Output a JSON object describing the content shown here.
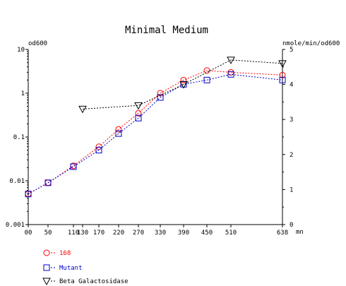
{
  "chart_data": {
    "type": "line",
    "title": "Minimal Medium",
    "ylabel_left": "od600",
    "ylabel_right": "nmole/min/od600",
    "xlabel": "mn",
    "x_ticks": [
      "00",
      "50",
      "110",
      "130",
      "170",
      "220",
      "270",
      "330",
      "390",
      "450",
      "510",
      "638"
    ],
    "y_left": {
      "scale": "log",
      "ylim": [
        0.001,
        10
      ],
      "ticks": [
        "10",
        "1",
        "0.1",
        "0.01",
        "0.001"
      ]
    },
    "y_right": {
      "scale": "linear",
      "ylim": [
        0,
        5
      ],
      "ticks": [
        "5",
        "4",
        "3",
        "2",
        "1",
        "0"
      ]
    },
    "series": [
      {
        "name": "168",
        "axis": "left",
        "marker": "circle",
        "color": "#ff0000",
        "x": [
          0,
          50,
          110,
          170,
          220,
          270,
          330,
          390,
          450,
          510,
          638
        ],
        "y": [
          0.005,
          0.009,
          0.022,
          0.06,
          0.15,
          0.35,
          1.0,
          2.0,
          3.3,
          3.0,
          2.6
        ]
      },
      {
        "name": "Mutant",
        "axis": "left",
        "marker": "square",
        "color": "#0000cc",
        "x": [
          0,
          50,
          110,
          170,
          220,
          270,
          330,
          390,
          450,
          510,
          638
        ],
        "y": [
          0.005,
          0.009,
          0.021,
          0.05,
          0.12,
          0.27,
          0.8,
          1.6,
          2.0,
          2.7,
          2.0
        ]
      },
      {
        "name": "Beta Galactosidase",
        "axis": "right",
        "marker": "triangle",
        "color": "#000000",
        "x": [
          130,
          270,
          390,
          510,
          638
        ],
        "y": [
          3.3,
          3.4,
          4.0,
          4.7,
          4.6
        ]
      }
    ]
  }
}
